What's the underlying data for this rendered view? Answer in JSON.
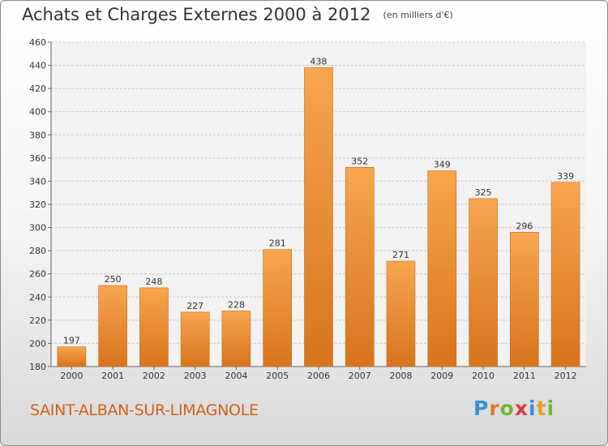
{
  "header": {
    "title": "Achats et Charges Externes 2000 à 2012",
    "subtitle": "(en milliers d'€)"
  },
  "footer": {
    "commune": "SAINT-ALBAN-SUR-LIMAGNOLE",
    "logo_letters": [
      "P",
      "r",
      "o",
      "x",
      "i",
      "t",
      "i"
    ],
    "logo_colors": [
      "#3a8ed6",
      "#e07a1e",
      "#7ab33a",
      "#d93c3c",
      "#3a8ed6",
      "#e0a21e",
      "#7ab33a"
    ]
  },
  "colors": {
    "bar_top": "#f7a64e",
    "bar_bottom": "#d8741e",
    "bar_stroke": "#c96a18",
    "grid": "#c8c8c8",
    "axis_text": "#333333",
    "plot_bg": "#f2f2f2"
  },
  "chart_data": {
    "type": "bar",
    "title": "Achats et Charges Externes 2000 à 2012",
    "subtitle": "(en milliers d'€)",
    "categories": [
      "2000",
      "2001",
      "2002",
      "2003",
      "2004",
      "2005",
      "2006",
      "2007",
      "2008",
      "2009",
      "2010",
      "2011",
      "2012"
    ],
    "values": [
      197,
      250,
      248,
      227,
      228,
      281,
      438,
      352,
      271,
      349,
      325,
      296,
      339
    ],
    "ylim": [
      180,
      460
    ],
    "yticks": [
      180,
      200,
      220,
      240,
      260,
      280,
      300,
      320,
      340,
      360,
      380,
      400,
      420,
      440,
      460
    ],
    "grid": true,
    "legend": "none"
  }
}
